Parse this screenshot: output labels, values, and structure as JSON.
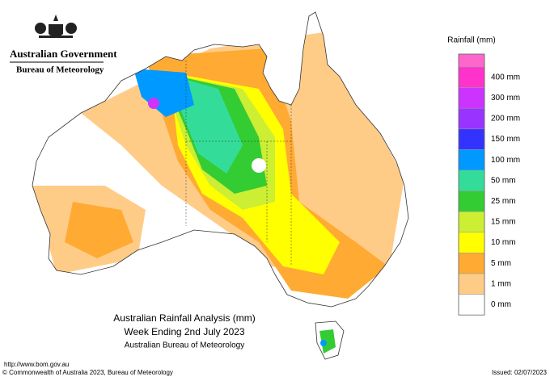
{
  "header": {
    "title": "Australian Government",
    "subtitle": "Bureau of Meteorology"
  },
  "legend": {
    "title": "Rainfall (mm)",
    "items": [
      {
        "color": "#ff66cc"
      },
      {
        "label": "400 mm",
        "color": "#ff33cc"
      },
      {
        "label": "300 mm",
        "color": "#cc33ff"
      },
      {
        "label": "200 mm",
        "color": "#9933ff"
      },
      {
        "label": "150 mm",
        "color": "#3333ff"
      },
      {
        "label": "100 mm",
        "color": "#0099ff"
      },
      {
        "label": "50 mm",
        "color": "#33dd99"
      },
      {
        "label": "25 mm",
        "color": "#33cc33"
      },
      {
        "label": "15 mm",
        "color": "#ccee33"
      },
      {
        "label": "10 mm",
        "color": "#ffff00"
      },
      {
        "label": "5 mm",
        "color": "#ffaa33"
      },
      {
        "label": "1 mm",
        "color": "#ffcc88"
      },
      {
        "label": "0 mm",
        "color": "#ffffff"
      }
    ]
  },
  "title": {
    "line1": "Australian Rainfall Analysis (mm)",
    "line2": "Week Ending 2nd July 2023",
    "line3": "Australian Bureau of Meteorology"
  },
  "footer": {
    "url": "http://www.bom.gov.au",
    "copyright": "© Commonwealth of Australia 2023, Bureau of Meteorology",
    "issued": "Issued: 02/07/2023"
  }
}
